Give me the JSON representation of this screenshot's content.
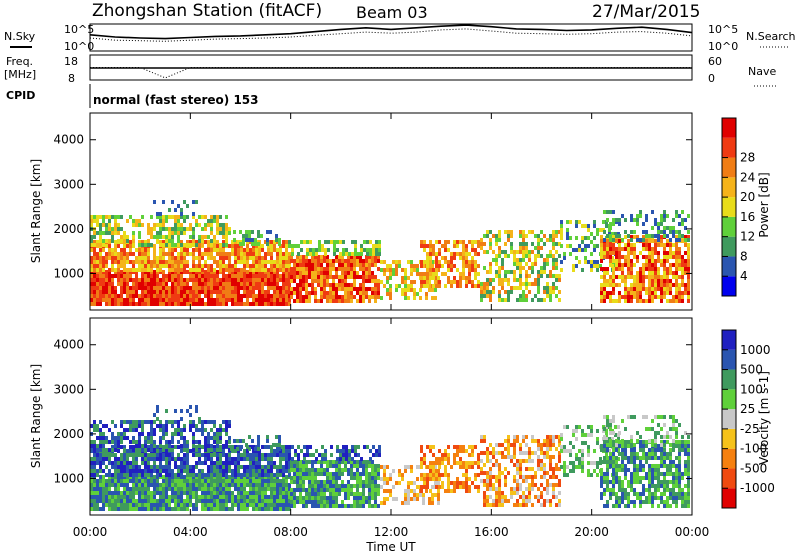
{
  "header": {
    "station": "Zhongshan Station (fitACF)",
    "beam": "Beam 03",
    "date": "27/Mar/2015"
  },
  "panel_labels": {
    "nsky": "N.Sky",
    "nsearch": "N.Search",
    "freq_top": "Freq.",
    "freq_unit": "[MHz]",
    "nave": "Nave",
    "cpid": "CPID",
    "cpid_value": "normal (fast stereo) 153",
    "noise_tick_hi": "10^5",
    "noise_tick_lo": "10^0",
    "freq_tick_hi": "18",
    "freq_tick_lo": "8",
    "nave_tick_hi": "60",
    "nave_tick_lo": "0"
  },
  "colors": {
    "power_scale": [
      "#0000ee",
      "#2a55b0",
      "#3f9a5e",
      "#5fd03a",
      "#e8dc1a",
      "#f5b31a",
      "#f07d15",
      "#ef3a12",
      "#e00000"
    ],
    "velocity_scale": [
      "#e00000",
      "#f04a10",
      "#f5800f",
      "#f5c21a",
      "#c8c8c8",
      "#5fd03a",
      "#3f9a5e",
      "#2a55b0",
      "#2020c0"
    ]
  },
  "chart_data": [
    {
      "type": "line",
      "title": "",
      "series": [
        {
          "name": "N.Sky",
          "values": [
            3.0,
            2.6,
            2.4,
            2.3,
            2.5,
            2.7,
            2.8,
            3.0,
            3.2,
            3.6,
            4.0,
            4.3,
            4.0,
            4.3,
            4.6,
            4.8,
            4.5,
            4.1,
            4.0,
            3.8,
            3.9,
            4.2,
            4.4,
            4.0,
            3.4
          ]
        },
        {
          "name": "N.Search",
          "values": [
            2.4,
            2.0,
            1.9,
            1.8,
            2.0,
            2.2,
            2.3,
            2.4,
            2.6,
            2.9,
            3.2,
            3.5,
            3.3,
            3.5,
            3.9,
            4.1,
            3.7,
            3.3,
            3.2,
            3.1,
            3.2,
            3.5,
            3.6,
            3.3,
            2.8
          ]
        }
      ],
      "x": [
        "00:00",
        "01:00",
        "02:00",
        "03:00",
        "04:00",
        "05:00",
        "06:00",
        "07:00",
        "08:00",
        "09:00",
        "10:00",
        "11:00",
        "12:00",
        "13:00",
        "14:00",
        "15:00",
        "16:00",
        "17:00",
        "18:00",
        "19:00",
        "20:00",
        "21:00",
        "22:00",
        "23:00",
        "24:00"
      ],
      "ylim": [
        0,
        5
      ]
    },
    {
      "type": "line",
      "title": "",
      "series": [
        {
          "name": "Freq.",
          "values": [
            12.2,
            12.2,
            12.2,
            12.2,
            12.2,
            12.2,
            12.2,
            12.2,
            12.2,
            12.2,
            12.2,
            12.2,
            12.2,
            12.2,
            12.2,
            12.2,
            12.2,
            12.2,
            12.2,
            12.2,
            12.2,
            12.2,
            12.2,
            12.2,
            12.2
          ]
        },
        {
          "name": "Nave",
          "values": [
            30,
            30,
            30,
            5,
            30,
            30,
            30,
            30,
            30,
            30,
            30,
            30,
            30,
            30,
            30,
            30,
            30,
            30,
            30,
            30,
            30,
            30,
            30,
            30,
            30
          ]
        }
      ],
      "ylim": [
        8,
        18
      ]
    },
    {
      "type": "heatmap",
      "title": "",
      "ylabel": "Slant Range [km]",
      "yticks": [
        "1000",
        "2000",
        "3000",
        "4000"
      ],
      "ylim": [
        180,
        4600
      ],
      "colorbar_label": "Power [dB]",
      "colorbar_ticks": [
        "4",
        "8",
        "12",
        "16",
        "20",
        "24",
        "28"
      ],
      "clim": [
        0,
        30
      ]
    },
    {
      "type": "heatmap",
      "title": "",
      "ylabel": "Slant Range [km]",
      "xlabel": "Time UT",
      "xticks": [
        "00:00",
        "04:00",
        "08:00",
        "12:00",
        "16:00",
        "20:00",
        "00:00"
      ],
      "yticks": [
        "1000",
        "2000",
        "3000",
        "4000"
      ],
      "ylim": [
        180,
        4600
      ],
      "colorbar_label": "Velocity [m s-1]",
      "colorbar_ticks": [
        "1000",
        "500",
        "100",
        "25",
        "-25",
        "-100",
        "-500",
        "-1000"
      ]
    }
  ]
}
